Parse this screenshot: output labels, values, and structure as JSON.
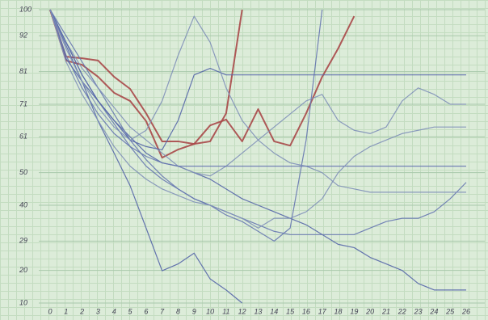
{
  "chart_data": {
    "type": "line",
    "x": [
      0,
      1,
      2,
      3,
      4,
      5,
      6,
      7,
      8,
      9,
      10,
      11,
      12,
      13,
      14,
      15,
      16,
      17,
      18,
      19,
      20,
      21,
      22,
      23,
      24,
      25,
      26
    ],
    "xlim": [
      0,
      26
    ],
    "ylim": [
      10,
      100
    ],
    "yticks": [
      100,
      92,
      81,
      71,
      61,
      50,
      40,
      29,
      20,
      10
    ],
    "grid": true,
    "series": [
      {
        "color": "#a84848",
        "values": [
          100,
          85.6,
          85.1,
          84.4,
          79.4,
          75.7,
          68.2,
          59.6,
          59.6,
          58.8,
          59.6,
          68.2,
          100,
          null,
          null,
          null,
          null,
          null,
          null,
          null,
          null,
          null,
          null,
          null,
          null,
          null,
          null
        ]
      },
      {
        "color": "#a84848",
        "values": [
          100,
          84.4,
          83.1,
          79.4,
          74.5,
          72,
          65.8,
          54.6,
          57.1,
          58.8,
          64.5,
          66.3,
          59.6,
          69.5,
          59.6,
          58.3,
          68.2,
          79.4,
          88.1,
          98,
          null,
          null,
          null,
          null,
          null,
          null,
          null
        ]
      },
      {
        "color": "#5566a8",
        "values": [
          100,
          89,
          78,
          65.8,
          56,
          46,
          33,
          19.9,
          22,
          25.3,
          17.4,
          14,
          10,
          null,
          null,
          null,
          null,
          null,
          null,
          null,
          null,
          null,
          null,
          null,
          null,
          null,
          null
        ]
      },
      {
        "color": "#5566a8",
        "values": [
          100,
          85,
          78,
          72,
          66,
          61,
          56,
          53,
          52,
          50,
          48,
          45,
          42,
          40,
          38,
          36,
          34,
          31,
          28,
          27,
          24,
          22,
          20,
          16,
          14,
          14,
          14
        ]
      },
      {
        "color": "#6677b0",
        "values": [
          100,
          90,
          80,
          72,
          65,
          58,
          52,
          48,
          45,
          42,
          40,
          37,
          35,
          32,
          29,
          33,
          60,
          100,
          null,
          null,
          null,
          null,
          null,
          null,
          null,
          null,
          null
        ]
      },
      {
        "color": "#6677b0",
        "values": [
          100,
          92,
          84,
          76,
          68,
          60,
          54,
          49,
          45,
          42,
          40,
          38,
          36,
          34,
          32,
          31,
          31,
          31,
          31,
          31,
          33,
          35,
          36,
          36,
          38,
          42,
          47
        ]
      },
      {
        "color": "#7f90b8",
        "values": [
          100,
          90,
          82,
          76,
          70,
          64,
          60,
          56,
          52,
          50,
          49,
          52,
          56,
          60,
          64,
          68,
          72,
          74,
          66,
          63,
          62,
          64,
          72,
          76,
          74,
          71,
          71
        ]
      },
      {
        "color": "#5566a8",
        "values": [
          100,
          90,
          80,
          72,
          66,
          60,
          58,
          57,
          66,
          80,
          82,
          80,
          80,
          80,
          80,
          80,
          80,
          80,
          80,
          80,
          80,
          80,
          80,
          80,
          80,
          80,
          80
        ]
      },
      {
        "color": "#7f90b8",
        "values": [
          100,
          88,
          78,
          70,
          64,
          60,
          63,
          72,
          86,
          98,
          90,
          76,
          66,
          60,
          56,
          53,
          52,
          50,
          46,
          45,
          44,
          44,
          44,
          44,
          44,
          44,
          44
        ]
      },
      {
        "color": "#6677b0",
        "values": [
          100,
          86,
          76,
          68,
          62,
          58,
          55,
          53,
          52,
          52,
          52,
          52,
          52,
          52,
          52,
          52,
          52,
          52,
          52,
          52,
          52,
          52,
          52,
          52,
          52,
          52,
          52
        ]
      },
      {
        "color": "#7f90b8",
        "values": [
          100,
          84,
          74,
          66,
          58,
          52,
          48,
          45,
          43,
          41,
          40,
          38,
          36,
          33,
          36,
          36,
          38,
          42,
          50,
          55,
          58,
          60,
          62,
          63,
          64,
          64,
          64
        ]
      }
    ]
  }
}
